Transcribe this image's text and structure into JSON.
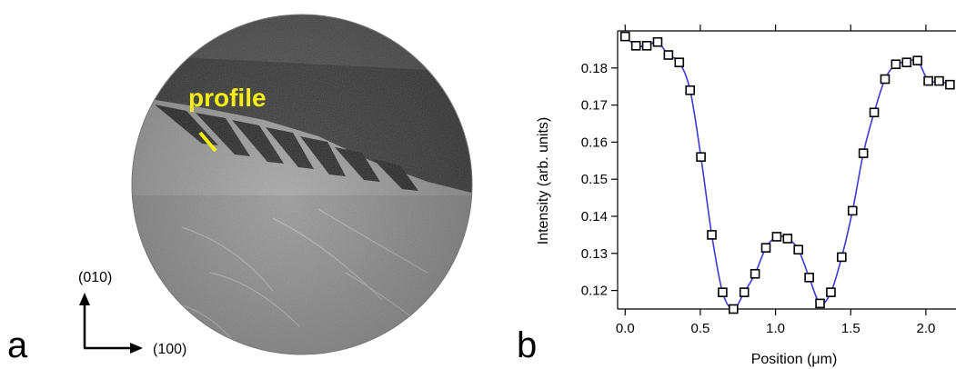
{
  "panel_a": {
    "letter": "a",
    "annotation": "profile",
    "annotation_color": "#f4ee0c",
    "axis_y_label": "(010)",
    "axis_x_label": "(100)"
  },
  "panel_b": {
    "letter": "b"
  },
  "chart_data": {
    "type": "line",
    "title": "",
    "xlabel": "Position (μm)",
    "ylabel": "Intensity (arb. units)",
    "xlim": [
      -0.05,
      2.2
    ],
    "ylim": [
      0.115,
      0.19
    ],
    "xticks": [
      0.0,
      0.5,
      1.0,
      1.5,
      2.0
    ],
    "xtick_labels": [
      "0.0",
      "0.5",
      "1.0",
      "1.5",
      "2.0"
    ],
    "yticks": [
      0.12,
      0.13,
      0.14,
      0.15,
      0.16,
      0.17,
      0.18
    ],
    "ytick_labels": [
      "0.12",
      "0.13",
      "0.14",
      "0.15",
      "0.16",
      "0.17",
      "0.18"
    ],
    "line_color": "#3b3bd4",
    "marker": "open-square",
    "grid": false,
    "series": [
      {
        "x": [
          0.0,
          0.072,
          0.144,
          0.216,
          0.288,
          0.36,
          0.432,
          0.504,
          0.576,
          0.648,
          0.72,
          0.792,
          0.864,
          0.936,
          1.008,
          1.08,
          1.152,
          1.224,
          1.296,
          1.368,
          1.44,
          1.512,
          1.584,
          1.656,
          1.728,
          1.8,
          1.872,
          1.944,
          2.016,
          2.088,
          2.16
        ],
        "y": [
          0.1885,
          0.186,
          0.186,
          0.187,
          0.1835,
          0.1815,
          0.174,
          0.156,
          0.135,
          0.1195,
          0.115,
          0.1195,
          0.1245,
          0.1315,
          0.1345,
          0.134,
          0.131,
          0.1235,
          0.1165,
          0.1195,
          0.129,
          0.1415,
          0.157,
          0.168,
          0.177,
          0.181,
          0.1815,
          0.182,
          0.1765,
          0.1765,
          0.1755
        ]
      }
    ]
  }
}
